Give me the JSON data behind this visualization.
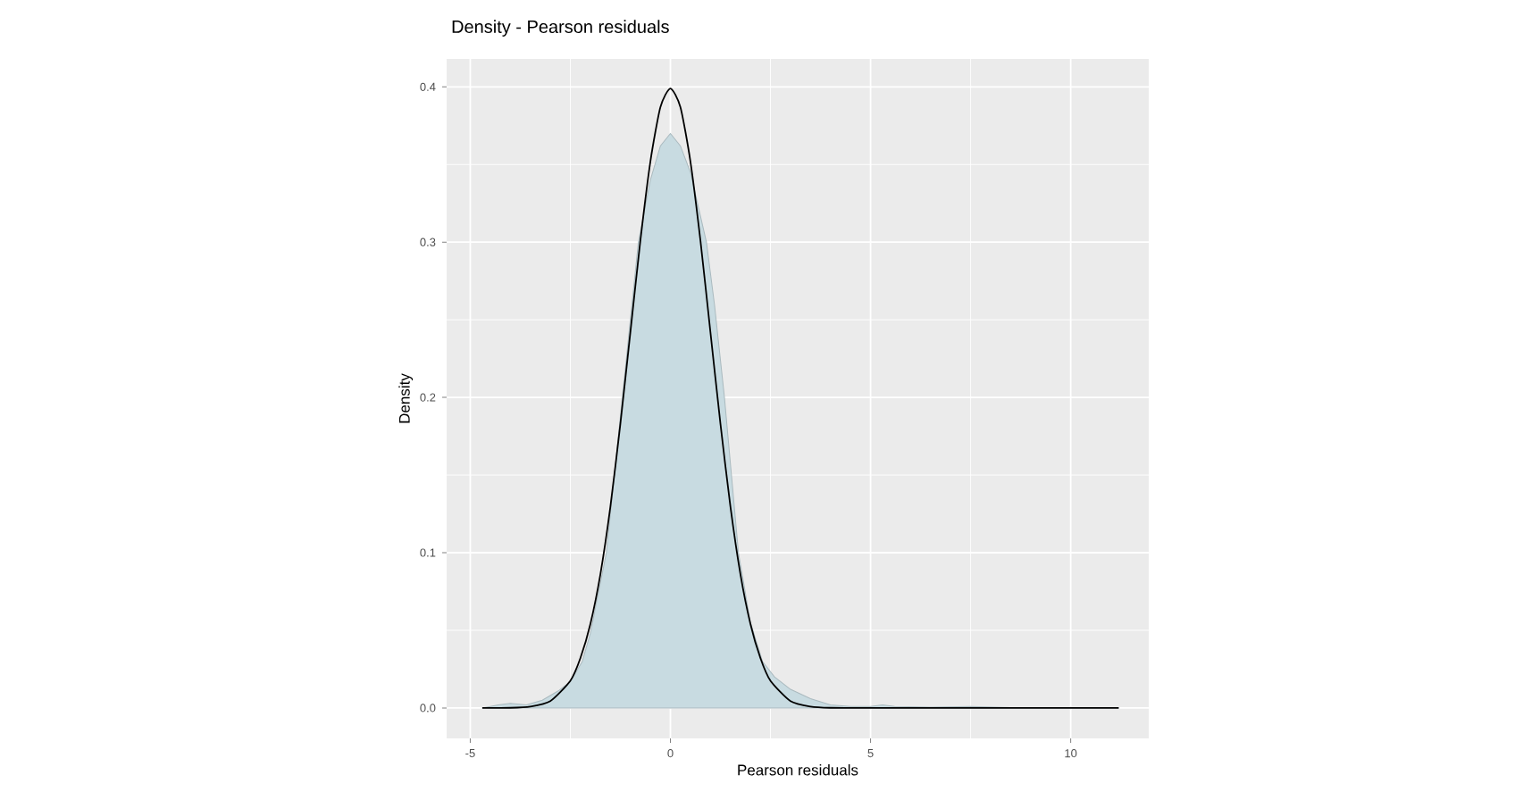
{
  "chart_data": {
    "type": "area",
    "title": "Density - Pearson residuals",
    "xlabel": "Pearson residuals",
    "ylabel": "Density",
    "xlim": [
      -5.59,
      11.95
    ],
    "ylim": [
      -0.0196,
      0.418
    ],
    "xticks": [
      -5,
      0,
      5,
      10
    ],
    "yticks": [
      {
        "value": 0,
        "label": "0.0"
      },
      0.1,
      0.2,
      0.3,
      0.4
    ],
    "grid": true,
    "series": [
      {
        "color": "#c8dbe1",
        "x": [
          -4.7,
          -4.3,
          -4,
          -3.6,
          -3.2,
          -2.8,
          -2.5,
          -2.2,
          -2,
          -1.6,
          -1.2,
          -1,
          -0.8,
          -0.5,
          -0.25,
          0,
          0.25,
          0.5,
          0.9,
          1.1,
          1.35,
          1.7,
          2,
          2.3,
          2.6,
          3,
          3.5,
          4,
          4.5,
          5,
          5.3,
          5.6,
          6.5,
          7.5,
          8.5,
          11.2
        ],
        "values": [
          0,
          0.002,
          0.003,
          0.002,
          0.005,
          0.011,
          0.017,
          0.03,
          0.048,
          0.1,
          0.2,
          0.25,
          0.3,
          0.34,
          0.362,
          0.37,
          0.362,
          0.345,
          0.3,
          0.26,
          0.2,
          0.1,
          0.055,
          0.03,
          0.02,
          0.012,
          0.006,
          0.002,
          0.001,
          0.001,
          0.002,
          0.001,
          0.0005,
          0.001,
          0.0003,
          0
        ]
      },
      {
        "type": "line",
        "color": "#000000",
        "x": [
          -4.7,
          -4,
          -3.5,
          -3,
          -2.5,
          -2.25,
          -2,
          -1.75,
          -1.5,
          -1.25,
          -1,
          -0.75,
          -0.5,
          -0.25,
          0,
          0.25,
          0.5,
          0.75,
          1,
          1.25,
          1.5,
          1.75,
          2,
          2.25,
          2.5,
          3,
          3.5,
          4,
          5,
          7,
          9,
          11.2
        ],
        "values": [
          0,
          0.0001,
          0.0009,
          0.0044,
          0.0175,
          0.032,
          0.054,
          0.086,
          0.1295,
          0.183,
          0.242,
          0.301,
          0.352,
          0.387,
          0.399,
          0.387,
          0.352,
          0.301,
          0.242,
          0.183,
          0.1295,
          0.086,
          0.054,
          0.032,
          0.0175,
          0.0044,
          0.0009,
          0.0001,
          0,
          0,
          0,
          0
        ]
      }
    ]
  }
}
